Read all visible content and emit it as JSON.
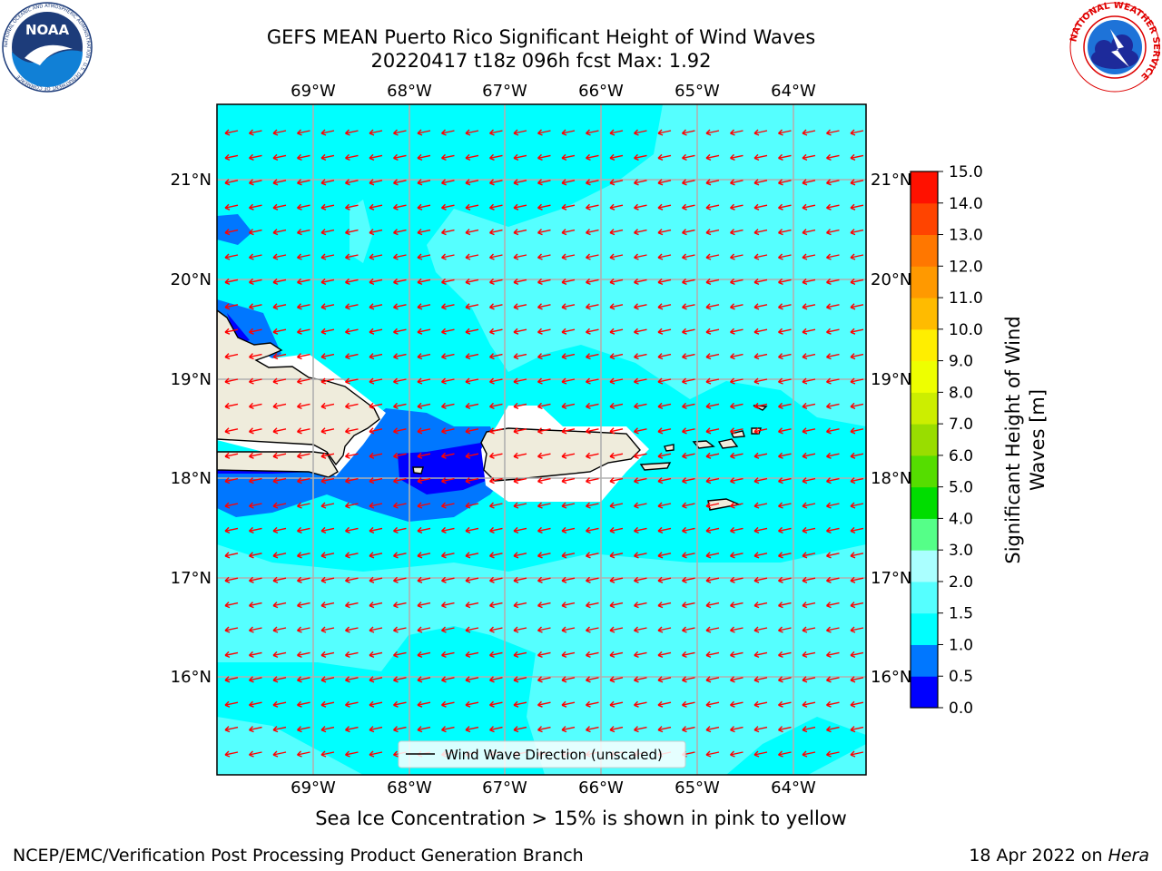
{
  "header": {
    "title_line1": "GEFS MEAN Puerto Rico Significant Height of Wind Waves",
    "title_line2": "20220417 t18z 096h fcst   Max: 1.92"
  },
  "logos": {
    "noaa_text": "NOAA",
    "noaa_ring": "NATIONAL OCEANIC AND ATMOSPHERIC ADMINISTRATION · U.S. DEPARTMENT OF COMMERCE",
    "nws_ring": "NATIONAL WEATHER SERVICE"
  },
  "map": {
    "lon_labels": [
      "69°W",
      "68°W",
      "67°W",
      "66°W",
      "65°W",
      "64°W"
    ],
    "lat_labels": [
      "21°N",
      "20°N",
      "19°N",
      "18°N",
      "17°N",
      "16°N"
    ],
    "ocean_color": "#00ffff",
    "land_color": "#efecdc",
    "arrow_color": "#ff0000",
    "arrow_direction": "toward WSW",
    "legend_label": "Wind Wave Direction (unscaled)"
  },
  "colorbar": {
    "label_line1": "Significant Height of Wind",
    "label_line2": "Waves [m]",
    "ticks": [
      "0.0",
      "0.5",
      "1.0",
      "1.5",
      "2.0",
      "3.0",
      "4.0",
      "5.0",
      "6.0",
      "7.0",
      "8.0",
      "9.0",
      "10.0",
      "11.0",
      "12.0",
      "13.0",
      "14.0",
      "15.0"
    ],
    "colors": [
      "#0000ff",
      "#0077ff",
      "#00ffff",
      "#55ffff",
      "#aaffff",
      "#55ff88",
      "#00dd00",
      "#55dd00",
      "#99dd00",
      "#ccee00",
      "#eeff00",
      "#ffee00",
      "#ffbb00",
      "#ff9900",
      "#ff7700",
      "#ff4400",
      "#ff1100"
    ]
  },
  "footer": {
    "sea_ice_note": "Sea Ice Concentration > 15% is shown in pink to yellow",
    "org": "NCEP/EMC/Verification Post Processing Product Generation Branch",
    "date": "18 Apr 2022 on",
    "machine": "Hera"
  }
}
